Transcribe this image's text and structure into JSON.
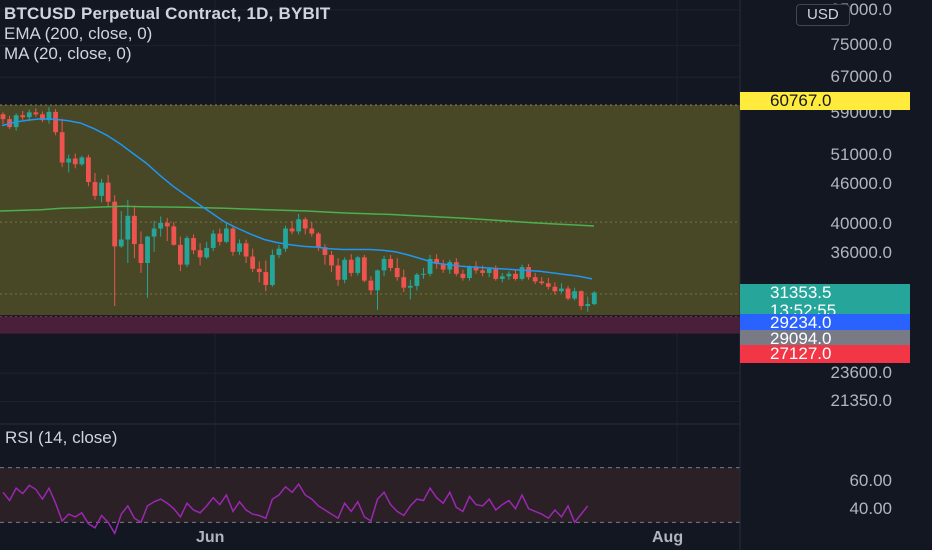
{
  "header": {
    "symbol_title": "BTCUSD Perpetual Contract, 1D, BYBIT",
    "ema_label": "EMA (200, close, 0)",
    "ma_label": "MA (20, close, 0)"
  },
  "currency_button": "USD",
  "rsi_label": "RSI (14, close)",
  "price_axis_ticks": [
    "85000.0",
    "75000.0",
    "67000.0",
    "59000.0",
    "51000.0",
    "46000.0",
    "40000.0",
    "36000.0",
    "23600.0",
    "21350.0"
  ],
  "rsi_axis_ticks": [
    "60.00",
    "40.00"
  ],
  "time_axis": [
    "Jun",
    "Aug"
  ],
  "price_badges": {
    "upper_level": {
      "value": "60767.0",
      "color": "#ffeb3b",
      "text_color": "#131722"
    },
    "last_price": {
      "value": "31353.5",
      "countdown": "13:52:55",
      "color": "#26a69a",
      "text_color": "#ffffff"
    },
    "blue_level": {
      "value": "29234.0",
      "color": "#2962ff",
      "text_color": "#ffffff"
    },
    "grey_level": {
      "value": "29094.0",
      "color": "#787b86",
      "text_color": "#ffffff"
    },
    "red_level": {
      "value": "27127.0",
      "color": "#f23645",
      "text_color": "#ffffff"
    }
  },
  "colors": {
    "up_candle": "#26a69a",
    "down_candle": "#ef5350",
    "ema_line": "#4caf50",
    "ma_line": "#2196f3",
    "rsi_line": "#9c27b0",
    "zone_fill": "#4b4a27",
    "support_zone_fill": "#4a1f3a"
  },
  "chart_data": {
    "type": "candlestick",
    "title": "BTCUSD Perpetual Contract, 1D, BYBIT",
    "y_scale": "log",
    "ohlc": [
      [
        58800,
        59200,
        56800,
        57800
      ],
      [
        57800,
        58500,
        55800,
        56200
      ],
      [
        56200,
        59000,
        55500,
        58600
      ],
      [
        58600,
        59500,
        57600,
        58200
      ],
      [
        58200,
        59800,
        57400,
        59200
      ],
      [
        59200,
        60100,
        58300,
        58800
      ],
      [
        58800,
        59400,
        57200,
        57600
      ],
      [
        57600,
        60300,
        56900,
        59300
      ],
      [
        59300,
        59900,
        54600,
        55200
      ],
      [
        55200,
        57900,
        48800,
        49600
      ],
      [
        49600,
        51000,
        47900,
        50300
      ],
      [
        50300,
        51200,
        48600,
        49300
      ],
      [
        49300,
        50800,
        49000,
        50500
      ],
      [
        50500,
        51000,
        45600,
        46300
      ],
      [
        46300,
        47800,
        43500,
        44100
      ],
      [
        44100,
        46800,
        43100,
        46200
      ],
      [
        46200,
        47500,
        42300,
        43200
      ],
      [
        43200,
        44200,
        29900,
        36900
      ],
      [
        36900,
        41800,
        36700,
        37800
      ],
      [
        37800,
        43500,
        34800,
        41100
      ],
      [
        41100,
        42600,
        35400,
        37200
      ],
      [
        37200,
        38900,
        33600,
        34800
      ],
      [
        34800,
        38300,
        30800,
        38200
      ],
      [
        38200,
        40400,
        36200,
        39300
      ],
      [
        39300,
        41000,
        38200,
        40100
      ],
      [
        40100,
        40800,
        37600,
        39600
      ],
      [
        39600,
        40200,
        37000,
        37100
      ],
      [
        37100,
        38200,
        33800,
        34600
      ],
      [
        34600,
        38300,
        34300,
        38000
      ],
      [
        38000,
        38500,
        35900,
        36400
      ],
      [
        36400,
        37300,
        34500,
        35500
      ],
      [
        35500,
        37500,
        35300,
        36700
      ],
      [
        36700,
        39100,
        36300,
        38600
      ],
      [
        38600,
        39300,
        37000,
        37500
      ],
      [
        37500,
        40100,
        37300,
        39300
      ],
      [
        39300,
        39600,
        35700,
        36200
      ],
      [
        36200,
        37800,
        35800,
        37300
      ],
      [
        37300,
        37800,
        34800,
        35600
      ],
      [
        35600,
        36600,
        33700,
        34100
      ],
      [
        34100,
        35000,
        32500,
        33700
      ],
      [
        33700,
        35100,
        31500,
        32200
      ],
      [
        32200,
        36500,
        32000,
        35800
      ],
      [
        35800,
        37100,
        35400,
        36600
      ],
      [
        36600,
        39700,
        36200,
        39300
      ],
      [
        39300,
        40400,
        38500,
        38900
      ],
      [
        38900,
        41400,
        38500,
        40600
      ],
      [
        40600,
        40900,
        38500,
        39300
      ],
      [
        39300,
        40200,
        38200,
        38600
      ],
      [
        38600,
        38800,
        36300,
        36800
      ],
      [
        36800,
        37200,
        34600,
        35800
      ],
      [
        35800,
        36300,
        33700,
        34500
      ],
      [
        34500,
        35400,
        32100,
        32800
      ],
      [
        32800,
        35500,
        32400,
        35200
      ],
      [
        35200,
        35900,
        33200,
        33600
      ],
      [
        33600,
        35700,
        33300,
        35500
      ],
      [
        35500,
        35800,
        32500,
        32700
      ],
      [
        32700,
        33200,
        31100,
        31600
      ],
      [
        31600,
        34000,
        29500,
        33900
      ],
      [
        33900,
        35700,
        33200,
        35300
      ],
      [
        35300,
        35800,
        33800,
        34200
      ],
      [
        34200,
        35400,
        32700,
        33100
      ],
      [
        33100,
        34000,
        31400,
        31900
      ],
      [
        31900,
        32800,
        30600,
        32100
      ],
      [
        32100,
        33600,
        31600,
        33400
      ],
      [
        33400,
        34200,
        32900,
        33500
      ],
      [
        33500,
        35800,
        33200,
        35300
      ],
      [
        35300,
        35900,
        34100,
        34700
      ],
      [
        34700,
        35200,
        33600,
        34000
      ],
      [
        34000,
        35200,
        33500,
        34900
      ],
      [
        34900,
        35400,
        33200,
        33500
      ],
      [
        33500,
        34000,
        32700,
        33000
      ],
      [
        33000,
        34500,
        32700,
        34400
      ],
      [
        34400,
        35000,
        33500,
        33900
      ],
      [
        33900,
        34500,
        33200,
        33600
      ],
      [
        33600,
        34300,
        33100,
        34100
      ],
      [
        34100,
        34500,
        32700,
        32900
      ],
      [
        32900,
        33600,
        32500,
        33200
      ],
      [
        33200,
        33800,
        32800,
        33500
      ],
      [
        33500,
        33900,
        32700,
        32900
      ],
      [
        32900,
        34600,
        32700,
        34300
      ],
      [
        34300,
        34700,
        32800,
        33100
      ],
      [
        33100,
        33600,
        32300,
        32600
      ],
      [
        32600,
        33100,
        32200,
        32400
      ],
      [
        32400,
        33000,
        31700,
        32000
      ],
      [
        32000,
        32500,
        31100,
        31500
      ],
      [
        31500,
        32400,
        31300,
        31800
      ],
      [
        31800,
        32100,
        30500,
        30700
      ],
      [
        30700,
        31900,
        30500,
        31500
      ],
      [
        31500,
        31600,
        29500,
        29900
      ],
      [
        29900,
        30900,
        29300,
        30100
      ],
      [
        30100,
        31500,
        30000,
        31354
      ]
    ],
    "ema_200": [
      41800,
      41900,
      42000,
      42200,
      42300,
      42400,
      42500,
      42450,
      42400,
      42350,
      42300,
      42200,
      42100,
      42000,
      41900,
      41800,
      41650,
      41500,
      41400,
      41300,
      41150,
      41000,
      40850,
      40700,
      40500,
      40300,
      40100,
      39950,
      39800,
      39650
    ],
    "ma_20": [
      56500,
      57200,
      57600,
      57900,
      57800,
      57500,
      57000,
      55900,
      54600,
      53000,
      51200,
      49500,
      47500,
      45700,
      44200,
      42800,
      41500,
      40200,
      39300,
      38500,
      37800,
      37400,
      37100,
      36900,
      36800,
      36600,
      36500,
      36500,
      36500,
      36400,
      36200,
      35800,
      35300,
      34800,
      34600,
      34400,
      34300,
      34200,
      34100,
      34000,
      33900,
      33800,
      33600,
      33400,
      33200,
      32900
    ],
    "rsi": [
      52,
      46,
      55,
      51,
      57,
      54,
      47,
      55,
      44,
      31,
      36,
      34,
      37,
      29,
      26,
      35,
      30,
      22,
      36,
      42,
      33,
      30,
      42,
      45,
      47,
      44,
      40,
      34,
      44,
      39,
      37,
      42,
      48,
      43,
      50,
      38,
      45,
      39,
      36,
      35,
      33,
      47,
      50,
      56,
      52,
      58,
      50,
      47,
      42,
      39,
      36,
      33,
      44,
      38,
      45,
      34,
      31,
      47,
      52,
      43,
      38,
      35,
      42,
      47,
      46,
      55,
      48,
      44,
      52,
      41,
      38,
      49,
      43,
      42,
      47,
      39,
      43,
      46,
      40,
      50,
      40,
      38,
      36,
      33,
      39,
      34,
      42,
      30,
      36,
      42
    ],
    "y_range": [
      20000,
      88000
    ],
    "rsi_range": [
      20,
      80
    ],
    "rsi_levels": [
      70,
      30
    ],
    "levels": {
      "upper_zone_top": 60767.0,
      "upper_zone_bottom": 28950,
      "lower_zone_top": 28800,
      "lower_zone_bottom": 27127.0
    }
  }
}
